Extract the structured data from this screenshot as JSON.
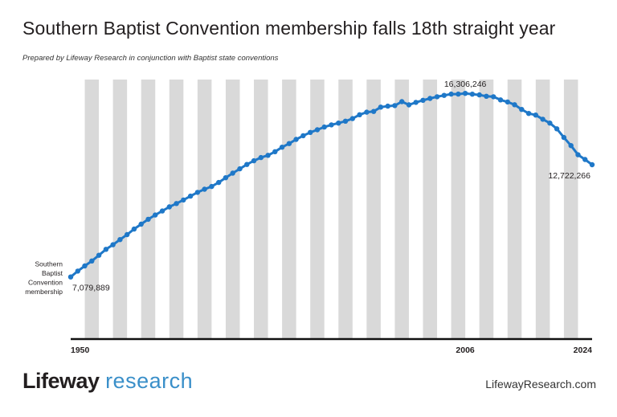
{
  "title": "Southern Baptist Convention membership falls 18th straight year",
  "subtitle": "Prepared by Lifeway Research in conjunction with Baptist state conventions",
  "logo": {
    "part1": "Lifeway",
    "part2": "research"
  },
  "website": "LifewayResearch.com",
  "colors": {
    "line": "#1f78c8",
    "band": "#d9d9d9",
    "axis": "#111111",
    "logo_accent": "#3a8fc9"
  },
  "chart_data": {
    "type": "line",
    "x_ticks": [
      "1950",
      "2006",
      "2024"
    ],
    "series": [
      {
        "name": "Southern Baptist Convention membership",
        "x": [
          1950,
          1951,
          1952,
          1953,
          1954,
          1955,
          1956,
          1957,
          1958,
          1959,
          1960,
          1961,
          1962,
          1963,
          1964,
          1965,
          1966,
          1967,
          1968,
          1969,
          1970,
          1971,
          1972,
          1973,
          1974,
          1975,
          1976,
          1977,
          1978,
          1979,
          1980,
          1981,
          1982,
          1983,
          1984,
          1985,
          1986,
          1987,
          1988,
          1989,
          1990,
          1991,
          1992,
          1993,
          1994,
          1995,
          1996,
          1997,
          1998,
          1999,
          2000,
          2001,
          2002,
          2003,
          2004,
          2005,
          2006,
          2007,
          2008,
          2009,
          2010,
          2011,
          2012,
          2013,
          2014,
          2015,
          2016,
          2017,
          2018,
          2019,
          2020,
          2021,
          2022,
          2023,
          2024
        ],
        "values": [
          7079889,
          7373498,
          7634493,
          7883708,
          8169491,
          8467439,
          8700480,
          8956756,
          9206758,
          9485276,
          9731591,
          9978139,
          10193052,
          10395940,
          10601515,
          10770573,
          10947389,
          11140469,
          11332229,
          11489613,
          11628032,
          11826463,
          12065333,
          12295400,
          12513378,
          12733124,
          12917992,
          13078239,
          13191394,
          13372757,
          13600126,
          13782644,
          13991709,
          14178051,
          14341821,
          14477364,
          14613638,
          14722617,
          14812844,
          14907826,
          15038409,
          15232347,
          15358866,
          15398642,
          15614060,
          15663296,
          15691964,
          15891514,
          15729356,
          15851756,
          15960308,
          16052920,
          16137736,
          16205050,
          16267494,
          16270315,
          16306246,
          16266920,
          16228438,
          16160088,
          16136044,
          15978112,
          15872404,
          15735640,
          15499173,
          15294764,
          15216978,
          15005638,
          14813234,
          14525579,
          14089947,
          13680493,
          13223122,
          12982090,
          12722266
        ],
        "labels": [
          {
            "year": 1950,
            "text": "7,079,889"
          },
          {
            "year": 2006,
            "text": "16,306,246"
          },
          {
            "year": 2024,
            "text": "12,722,266"
          }
        ]
      }
    ],
    "series_label": "Southern Baptist Convention membership",
    "series_label_lines": [
      "Southern",
      "Baptist",
      "Convention",
      "membership"
    ],
    "xlim": [
      1950,
      2024
    ],
    "ylim": [
      4000000,
      17000000
    ],
    "grid": "alternating vertical bands"
  }
}
